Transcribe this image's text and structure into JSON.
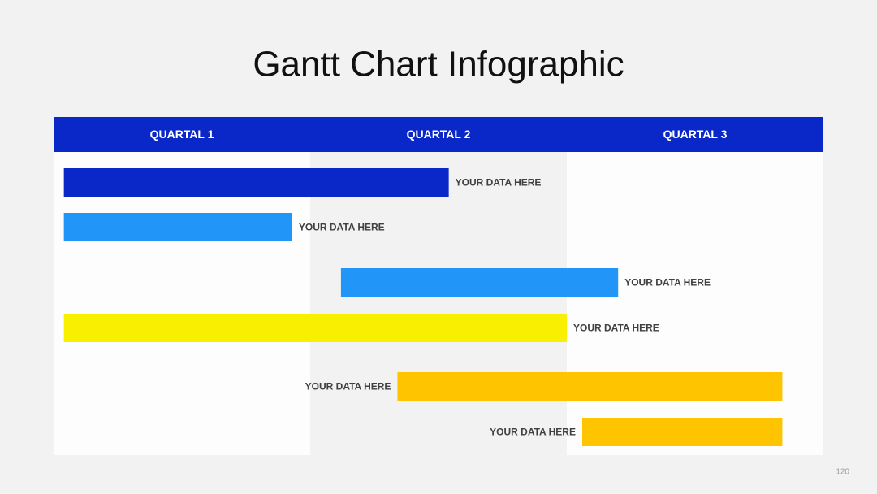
{
  "chart_data": {
    "type": "gantt",
    "title": "Gantt Chart Infographic",
    "columns": [
      "QUARTAL 1",
      "QUARTAL 2",
      "QUARTAL 3"
    ],
    "xlim": [
      0,
      3
    ],
    "tasks": [
      {
        "label": "YOUR DATA HERE",
        "start": 0.04,
        "end": 1.54,
        "color": "#0a28c8"
      },
      {
        "label": "YOUR DATA HERE",
        "start": 0.04,
        "end": 0.93,
        "color": "#2196f8"
      },
      {
        "label": "YOUR DATA HERE",
        "start": 1.12,
        "end": 2.2,
        "color": "#2196f8"
      },
      {
        "label": "YOUR DATA HERE",
        "start": 0.04,
        "end": 2.0,
        "color": "#f8f000"
      },
      {
        "label": "YOUR DATA HERE",
        "start": 1.34,
        "end": 2.84,
        "color": "#ffc400"
      },
      {
        "label": "YOUR DATA HERE",
        "start": 2.06,
        "end": 2.84,
        "color": "#ffc400"
      }
    ],
    "header_color": "#0a28c8"
  },
  "page_number": "120"
}
